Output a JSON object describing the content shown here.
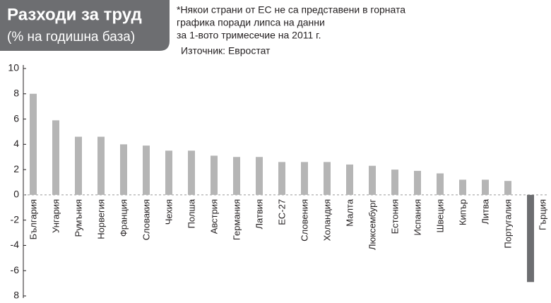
{
  "chart_data": {
    "type": "bar",
    "title": "Разходи за труд",
    "subtitle": "(% на годишна база)",
    "note_lines": [
      "*Някои страни от ЕС не са представени в горната",
      "графика поради липса на данни",
      "за 1-вото тримесечие на 2011 г."
    ],
    "source": "Източник: Евростат",
    "categories": [
      "България",
      "Унгария",
      "Румъния",
      "Норвегия",
      "Франция",
      "Словакия",
      "Чехия",
      "Полша",
      "Австрия",
      "Германия",
      "Латвия",
      "ЕС-27",
      "Словения",
      "Холандия",
      "Малта",
      "Люксембург",
      "Естония",
      "Испания",
      "Швеция",
      "Кипър",
      "Литва",
      "Португалия",
      "Гърция"
    ],
    "values": [
      8.0,
      5.9,
      4.6,
      4.6,
      4.0,
      3.9,
      3.5,
      3.5,
      3.1,
      3.0,
      3.0,
      2.6,
      2.6,
      2.6,
      2.4,
      2.3,
      2.0,
      1.9,
      1.7,
      1.2,
      1.2,
      1.1,
      -6.9
    ],
    "colors": [
      "#b5b5b5",
      "#b5b5b5",
      "#b5b5b5",
      "#b5b5b5",
      "#b5b5b5",
      "#b5b5b5",
      "#b5b5b5",
      "#b5b5b5",
      "#b5b5b5",
      "#b5b5b5",
      "#b5b5b5",
      "#b5b5b5",
      "#b5b5b5",
      "#b5b5b5",
      "#b5b5b5",
      "#b5b5b5",
      "#b5b5b5",
      "#b5b5b5",
      "#b5b5b5",
      "#b5b5b5",
      "#b5b5b5",
      "#b5b5b5",
      "#6d6e71"
    ],
    "ylim": [
      -8,
      10
    ],
    "yticks": [
      10,
      8,
      6,
      4,
      2,
      0,
      -2,
      -4,
      -6,
      {
        "value": -8,
        "label": "8"
      }
    ],
    "grid": false
  }
}
